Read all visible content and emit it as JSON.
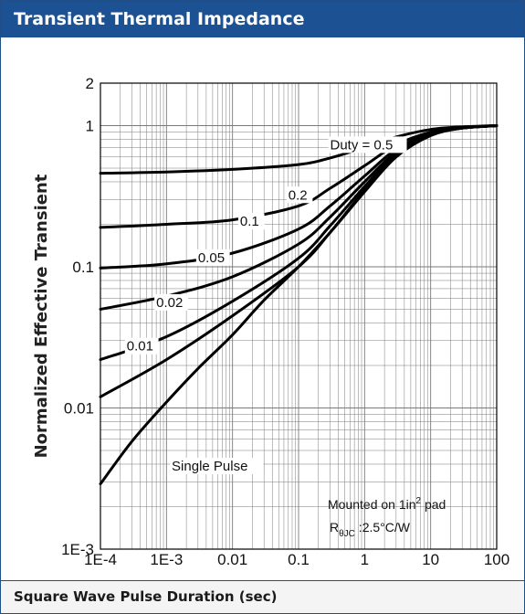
{
  "header": {
    "title": "Transient Thermal Impedance"
  },
  "footer": {
    "xlabel": "Square Wave Pulse Duration (sec)"
  },
  "colors": {
    "header_bg": "#1c5293",
    "curve": "#000000",
    "grid": "#7a7a7a"
  },
  "chart_data": {
    "type": "line",
    "title": "Transient Thermal Impedance",
    "xlabel": "Square Wave Pulse Duration (sec)",
    "ylabel": "Normalized Effective Transient",
    "x_scale": "log",
    "y_scale": "log",
    "xlim": [
      0.0001,
      100
    ],
    "ylim": [
      0.001,
      2
    ],
    "grid": true,
    "x_ticks": [
      {
        "value": 0.0001,
        "label": "1E-4"
      },
      {
        "value": 0.001,
        "label": "1E-3"
      },
      {
        "value": 0.01,
        "label": "0.01"
      },
      {
        "value": 0.1,
        "label": "0.1"
      },
      {
        "value": 1,
        "label": "1"
      },
      {
        "value": 10,
        "label": "10"
      },
      {
        "value": 100,
        "label": "100"
      }
    ],
    "y_ticks": [
      {
        "value": 0.001,
        "label": "1E-3"
      },
      {
        "value": 0.01,
        "label": "0.01"
      },
      {
        "value": 0.1,
        "label": "0.1"
      },
      {
        "value": 1,
        "label": "1"
      },
      {
        "value": 2,
        "label": "2"
      }
    ],
    "series": [
      {
        "name": "Duty = 0.5",
        "x": [
          0.0001,
          0.001,
          0.01,
          0.1,
          0.3,
          1,
          3,
          10,
          30,
          100
        ],
        "y": [
          0.46,
          0.47,
          0.49,
          0.53,
          0.59,
          0.7,
          0.83,
          0.94,
          0.98,
          1.0
        ]
      },
      {
        "name": "0.2",
        "x": [
          0.0001,
          0.001,
          0.01,
          0.1,
          0.3,
          1,
          3,
          10,
          30,
          100
        ],
        "y": [
          0.19,
          0.2,
          0.215,
          0.27,
          0.36,
          0.52,
          0.73,
          0.9,
          0.97,
          1.0
        ]
      },
      {
        "name": "0.1",
        "x": [
          0.0001,
          0.001,
          0.01,
          0.1,
          0.3,
          1,
          3,
          10,
          30,
          100
        ],
        "y": [
          0.098,
          0.105,
          0.125,
          0.185,
          0.27,
          0.44,
          0.68,
          0.88,
          0.96,
          1.0
        ]
      },
      {
        "name": "0.05",
        "x": [
          0.0001,
          0.001,
          0.01,
          0.1,
          0.3,
          1,
          3,
          10,
          30,
          100
        ],
        "y": [
          0.05,
          0.062,
          0.085,
          0.145,
          0.225,
          0.4,
          0.65,
          0.87,
          0.96,
          1.0
        ]
      },
      {
        "name": "0.02",
        "x": [
          0.0001,
          0.001,
          0.01,
          0.1,
          0.3,
          1,
          3,
          10,
          30,
          100
        ],
        "y": [
          0.022,
          0.032,
          0.057,
          0.115,
          0.195,
          0.37,
          0.63,
          0.86,
          0.96,
          1.0
        ]
      },
      {
        "name": "0.01",
        "x": [
          0.0001,
          0.001,
          0.01,
          0.1,
          0.3,
          1,
          3,
          10,
          30,
          100
        ],
        "y": [
          0.012,
          0.022,
          0.045,
          0.1,
          0.175,
          0.35,
          0.62,
          0.86,
          0.96,
          1.0
        ]
      },
      {
        "name": "Single Pulse",
        "x": [
          0.0001,
          0.0003,
          0.001,
          0.003,
          0.01,
          0.03,
          0.1,
          0.3,
          1,
          3,
          10,
          30,
          100
        ],
        "y": [
          0.0029,
          0.0058,
          0.011,
          0.019,
          0.033,
          0.058,
          0.1,
          0.175,
          0.34,
          0.6,
          0.85,
          0.96,
          1.0
        ]
      }
    ],
    "annotations": [
      {
        "text": "Duty = 0.5"
      },
      {
        "text": "0.2"
      },
      {
        "text": "0.1"
      },
      {
        "text": "0.05"
      },
      {
        "text": "0.02"
      },
      {
        "text": "0.01"
      },
      {
        "text": "Single Pulse"
      }
    ],
    "note": {
      "line1_prefix": "Mounted on 1in",
      "line1_sup": "2",
      "line1_suffix": " pad",
      "line2_main": "R",
      "line2_sub": "θJC",
      "line2_suffix": " :2.5°C/W"
    }
  }
}
